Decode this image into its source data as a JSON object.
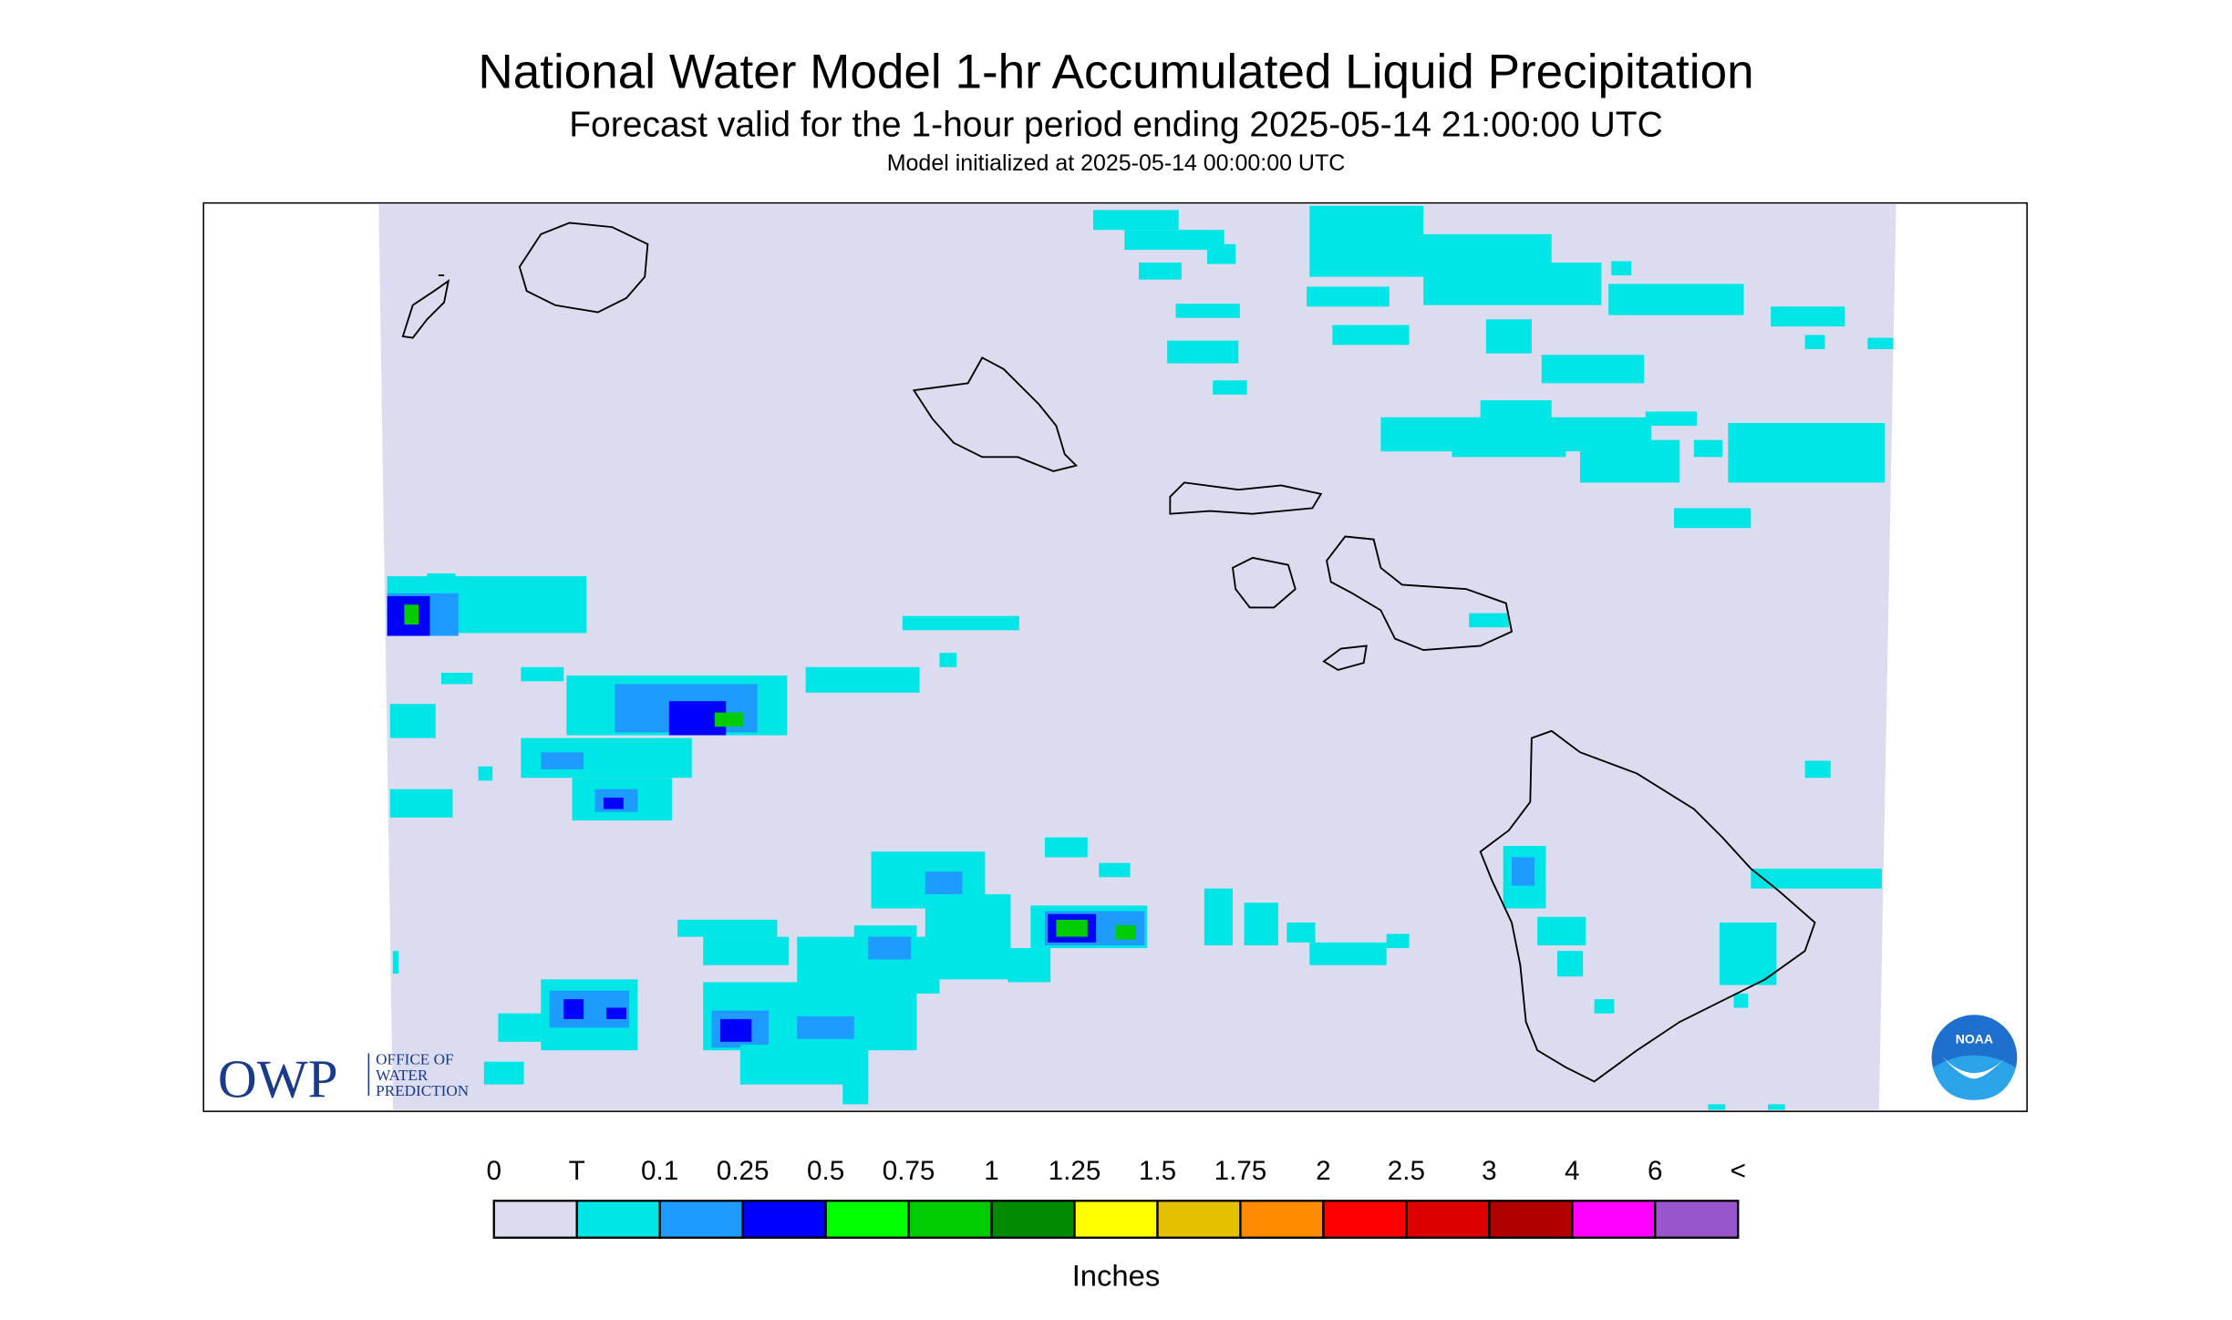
{
  "header": {
    "title": "National Water Model 1-hr Accumulated Liquid Precipitation",
    "subtitle": "Forecast valid for the 1-hour period ending 2025-05-14 21:00:00 UTC",
    "initialized": "Model initialized at 2025-05-14 00:00:00 UTC"
  },
  "legend": {
    "labels": [
      "0",
      "T",
      "0.1",
      "0.25",
      "0.5",
      "0.75",
      "1",
      "1.25",
      "1.5",
      "1.75",
      "2",
      "2.5",
      "3",
      "4",
      "6",
      "<"
    ],
    "colors": [
      "#dcdcf0",
      "#00e5e5",
      "#1e9bff",
      "#0000ff",
      "#00ff00",
      "#00cc00",
      "#008b00",
      "#ffff00",
      "#e5c000",
      "#ff8c00",
      "#ff0000",
      "#dd0000",
      "#b00000",
      "#ff00ff",
      "#9955cc"
    ],
    "unit": "Inches"
  },
  "logos": {
    "owp": "OWP",
    "owp_name": [
      "OFFICE OF",
      "WATER",
      "PREDICTION"
    ],
    "noaa": "NOAA"
  }
}
